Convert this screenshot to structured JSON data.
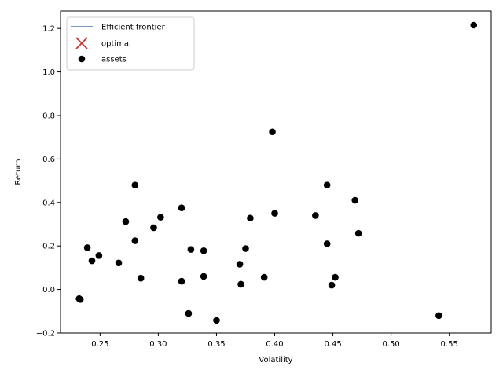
{
  "chart_data": {
    "type": "scatter",
    "xlabel": "Volatility",
    "ylabel": "Return",
    "xlim": [
      0.216,
      0.586
    ],
    "ylim": [
      -0.2,
      1.28
    ],
    "xticks": [
      0.25,
      0.3,
      0.35,
      0.4,
      0.45,
      0.5,
      0.55
    ],
    "xtick_labels": [
      "0.25",
      "0.30",
      "0.35",
      "0.40",
      "0.45",
      "0.50",
      "0.55"
    ],
    "yticks": [
      -0.2,
      0.0,
      0.2,
      0.4,
      0.6,
      0.8,
      1.0,
      1.2
    ],
    "ytick_labels": [
      "−0.2",
      "0.0",
      "0.2",
      "0.4",
      "0.6",
      "0.8",
      "1.0",
      "1.2"
    ],
    "grid": false,
    "legend_position": "top-left",
    "legend": [
      {
        "label": "Efficient frontier",
        "marker": "line",
        "color": "#4c72b0"
      },
      {
        "label": "optimal",
        "marker": "x",
        "color": "#d62728"
      },
      {
        "label": "assets",
        "marker": "dot",
        "color": "#000000"
      }
    ],
    "series": [
      {
        "name": "Efficient frontier",
        "kind": "line",
        "color": "#4c72b0",
        "points": []
      },
      {
        "name": "optimal",
        "kind": "marker-x",
        "color": "#d62728",
        "points": []
      },
      {
        "name": "assets",
        "kind": "points",
        "color": "#000000",
        "points": [
          {
            "x": 0.571,
            "y": 1.215
          },
          {
            "x": 0.398,
            "y": 0.725
          },
          {
            "x": 0.28,
            "y": 0.48
          },
          {
            "x": 0.445,
            "y": 0.48
          },
          {
            "x": 0.469,
            "y": 0.41
          },
          {
            "x": 0.32,
            "y": 0.375
          },
          {
            "x": 0.4,
            "y": 0.35
          },
          {
            "x": 0.435,
            "y": 0.34
          },
          {
            "x": 0.302,
            "y": 0.332
          },
          {
            "x": 0.379,
            "y": 0.328
          },
          {
            "x": 0.272,
            "y": 0.312
          },
          {
            "x": 0.296,
            "y": 0.284
          },
          {
            "x": 0.472,
            "y": 0.258
          },
          {
            "x": 0.28,
            "y": 0.224
          },
          {
            "x": 0.445,
            "y": 0.21
          },
          {
            "x": 0.239,
            "y": 0.192
          },
          {
            "x": 0.375,
            "y": 0.188
          },
          {
            "x": 0.328,
            "y": 0.184
          },
          {
            "x": 0.339,
            "y": 0.178
          },
          {
            "x": 0.249,
            "y": 0.156
          },
          {
            "x": 0.243,
            "y": 0.132
          },
          {
            "x": 0.266,
            "y": 0.122
          },
          {
            "x": 0.37,
            "y": 0.116
          },
          {
            "x": 0.339,
            "y": 0.06
          },
          {
            "x": 0.391,
            "y": 0.056
          },
          {
            "x": 0.452,
            "y": 0.056
          },
          {
            "x": 0.285,
            "y": 0.052
          },
          {
            "x": 0.32,
            "y": 0.038
          },
          {
            "x": 0.371,
            "y": 0.024
          },
          {
            "x": 0.449,
            "y": 0.02
          },
          {
            "x": 0.232,
            "y": -0.042
          },
          {
            "x": 0.233,
            "y": -0.046
          },
          {
            "x": 0.326,
            "y": -0.11
          },
          {
            "x": 0.541,
            "y": -0.12
          },
          {
            "x": 0.35,
            "y": -0.142
          }
        ]
      }
    ]
  }
}
